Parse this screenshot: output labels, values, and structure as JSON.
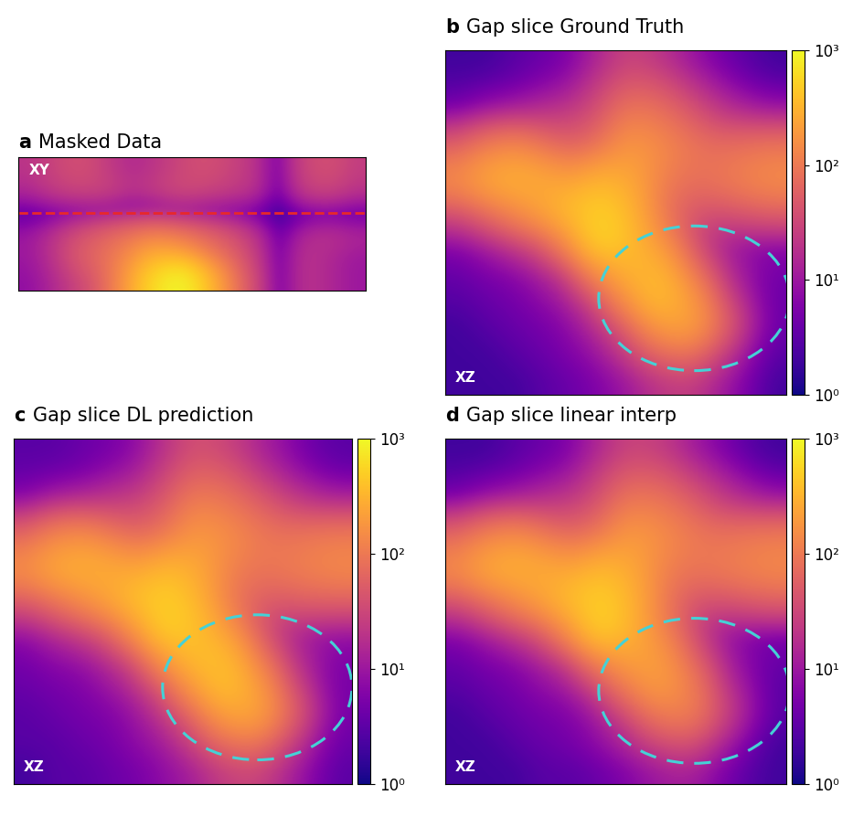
{
  "chart_data": [
    {
      "type": "heatmap",
      "panel": "a",
      "title": "Masked Data",
      "inset_label": "XY",
      "log": true,
      "tick_labels": false,
      "color_range": [
        1,
        1000
      ],
      "slice_row": 2,
      "cells": [
        [
          20,
          30,
          40,
          25,
          15,
          20,
          30,
          40,
          30,
          20,
          1,
          30,
          40,
          25
        ],
        [
          15,
          25,
          30,
          30,
          20,
          25,
          35,
          30,
          25,
          20,
          1,
          25,
          30,
          20
        ],
        [
          1,
          1,
          1,
          1,
          1,
          1,
          1,
          1,
          1,
          1,
          1,
          1,
          1,
          1
        ],
        [
          10,
          20,
          40,
          60,
          80,
          100,
          80,
          60,
          40,
          20,
          1,
          15,
          20,
          15
        ],
        [
          10,
          20,
          50,
          80,
          150,
          300,
          250,
          120,
          60,
          25,
          1,
          20,
          15,
          10
        ],
        [
          8,
          15,
          30,
          60,
          200,
          600,
          1000,
          400,
          100,
          30,
          1,
          20,
          15,
          10
        ]
      ]
    },
    {
      "type": "heatmap",
      "panel": "b",
      "title": "Gap slice Ground Truth",
      "inset_label": "XZ",
      "log": true,
      "tick_labels": false,
      "color_range": [
        1,
        1000
      ],
      "color_ticks": [
        {
          "value": 1,
          "label": "10⁰"
        },
        {
          "value": 10,
          "label": "10¹"
        },
        {
          "value": 100,
          "label": "10²"
        },
        {
          "value": 1000,
          "label": "10³"
        }
      ],
      "cells": [
        [
          2,
          2,
          3,
          4,
          6,
          15,
          30,
          20,
          10,
          5,
          3,
          2
        ],
        [
          3,
          4,
          5,
          8,
          12,
          30,
          60,
          50,
          25,
          12,
          6,
          4
        ],
        [
          8,
          15,
          20,
          25,
          30,
          50,
          120,
          100,
          60,
          30,
          20,
          15
        ],
        [
          60,
          120,
          150,
          90,
          60,
          100,
          200,
          150,
          100,
          80,
          90,
          100
        ],
        [
          150,
          250,
          300,
          250,
          200,
          300,
          250,
          120,
          80,
          90,
          120,
          150
        ],
        [
          40,
          80,
          150,
          250,
          400,
          500,
          300,
          100,
          50,
          40,
          50,
          60
        ],
        [
          8,
          15,
          30,
          60,
          200,
          600,
          350,
          150,
          40,
          15,
          10,
          8
        ],
        [
          4,
          6,
          8,
          15,
          40,
          200,
          350,
          300,
          80,
          20,
          8,
          5
        ],
        [
          3,
          4,
          5,
          8,
          15,
          50,
          200,
          400,
          200,
          40,
          10,
          4
        ],
        [
          2,
          3,
          4,
          5,
          8,
          20,
          60,
          200,
          250,
          80,
          15,
          4
        ],
        [
          2,
          2,
          3,
          4,
          6,
          10,
          25,
          60,
          80,
          30,
          8,
          3
        ],
        [
          2,
          2,
          2,
          3,
          4,
          6,
          10,
          20,
          25,
          12,
          5,
          2
        ]
      ]
    },
    {
      "type": "heatmap",
      "panel": "c",
      "title": "Gap slice DL prediction",
      "inset_label": "XZ",
      "log": true,
      "tick_labels": false,
      "color_range": [
        1,
        1000
      ],
      "color_ticks": [
        {
          "value": 1,
          "label": "10⁰"
        },
        {
          "value": 10,
          "label": "10¹"
        },
        {
          "value": 100,
          "label": "10²"
        },
        {
          "value": 1000,
          "label": "10³"
        }
      ],
      "cells": [
        [
          3,
          3,
          4,
          5,
          8,
          20,
          40,
          30,
          15,
          8,
          4,
          3
        ],
        [
          4,
          5,
          6,
          10,
          15,
          35,
          70,
          60,
          30,
          15,
          8,
          5
        ],
        [
          10,
          20,
          25,
          30,
          35,
          60,
          130,
          110,
          70,
          40,
          25,
          20
        ],
        [
          70,
          140,
          160,
          100,
          70,
          110,
          200,
          160,
          110,
          90,
          100,
          110
        ],
        [
          160,
          260,
          300,
          260,
          220,
          320,
          260,
          130,
          90,
          100,
          120,
          140
        ],
        [
          50,
          90,
          160,
          260,
          420,
          500,
          300,
          110,
          60,
          50,
          60,
          60
        ],
        [
          10,
          20,
          35,
          70,
          220,
          550,
          380,
          170,
          50,
          20,
          12,
          10
        ],
        [
          5,
          8,
          10,
          20,
          50,
          220,
          400,
          350,
          100,
          25,
          10,
          6
        ],
        [
          4,
          5,
          6,
          10,
          20,
          60,
          220,
          420,
          220,
          50,
          12,
          5
        ],
        [
          3,
          4,
          5,
          6,
          10,
          25,
          70,
          220,
          260,
          90,
          18,
          5
        ],
        [
          3,
          3,
          4,
          5,
          8,
          12,
          30,
          70,
          90,
          35,
          10,
          4
        ],
        [
          2,
          3,
          3,
          4,
          5,
          8,
          12,
          25,
          30,
          15,
          6,
          3
        ]
      ]
    },
    {
      "type": "heatmap",
      "panel": "d",
      "title": "Gap slice linear interp",
      "inset_label": "XZ",
      "log": true,
      "tick_labels": false,
      "color_range": [
        1,
        1000
      ],
      "color_ticks": [
        {
          "value": 1,
          "label": "10⁰"
        },
        {
          "value": 10,
          "label": "10¹"
        },
        {
          "value": 100,
          "label": "10²"
        },
        {
          "value": 1000,
          "label": "10³"
        }
      ],
      "cells": [
        [
          2,
          2,
          3,
          4,
          6,
          15,
          30,
          25,
          12,
          6,
          3,
          2
        ],
        [
          3,
          4,
          5,
          8,
          12,
          30,
          60,
          55,
          30,
          15,
          7,
          4
        ],
        [
          8,
          15,
          20,
          25,
          30,
          50,
          120,
          110,
          70,
          35,
          22,
          15
        ],
        [
          70,
          130,
          160,
          100,
          70,
          110,
          210,
          160,
          110,
          90,
          100,
          110
        ],
        [
          150,
          260,
          300,
          260,
          220,
          320,
          260,
          130,
          90,
          100,
          120,
          140
        ],
        [
          40,
          80,
          150,
          250,
          400,
          500,
          300,
          110,
          50,
          40,
          50,
          60
        ],
        [
          8,
          15,
          30,
          60,
          200,
          550,
          300,
          120,
          35,
          12,
          8,
          6
        ],
        [
          4,
          6,
          8,
          15,
          35,
          150,
          250,
          200,
          60,
          15,
          6,
          4
        ],
        [
          3,
          4,
          5,
          8,
          12,
          35,
          120,
          220,
          120,
          25,
          8,
          3
        ],
        [
          2,
          3,
          4,
          5,
          6,
          12,
          35,
          100,
          120,
          40,
          10,
          3
        ],
        [
          2,
          2,
          3,
          4,
          5,
          8,
          15,
          30,
          40,
          15,
          5,
          2
        ],
        [
          2,
          2,
          2,
          3,
          3,
          4,
          6,
          10,
          12,
          6,
          3,
          2
        ]
      ]
    }
  ]
}
